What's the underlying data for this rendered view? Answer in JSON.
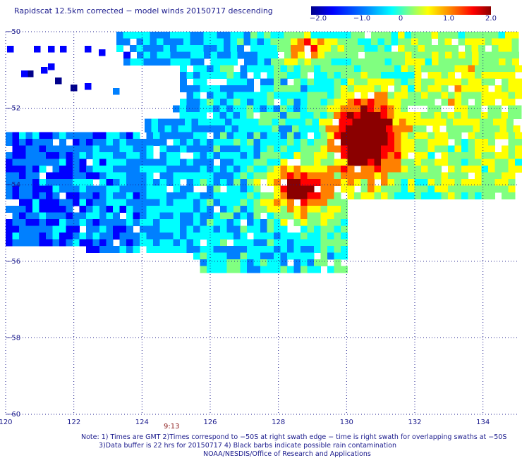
{
  "title": "Rapidscat 12.5km corrected − model winds 20150717 descending",
  "colorbar": {
    "ticks": [
      "−2.0",
      "−1.0",
      "0",
      "1.0",
      "2.0"
    ],
    "tick_values": [
      -2.0,
      -1.0,
      0.0,
      1.0,
      2.0
    ],
    "colors": [
      "#00008b",
      "#0000ff",
      "#0080ff",
      "#00ffff",
      "#80ff80",
      "#ffff00",
      "#ff8000",
      "#ff0000",
      "#8b0000"
    ]
  },
  "map": {
    "lon_labels": [
      "120",
      "122",
      "124",
      "126",
      "128",
      "130",
      "132",
      "134"
    ],
    "lat_labels": [
      "−50",
      "−52",
      "−54",
      "−56",
      "−58",
      "−60"
    ],
    "lon_range": [
      120,
      135
    ],
    "lat_range": [
      -50,
      -60
    ],
    "time_label": "9:13"
  },
  "notes": {
    "line1": "Note: 1) Times are GMT 2)Times correspond to −50S at right swath edge − time is right swath for overlapping swaths at −50S",
    "line2": "3)Data buffer is 22 hrs for 20150717 4) Black barbs indicate possible rain contamination",
    "line3": "NOAA/NESDIS/Office of Research and Applications"
  }
}
